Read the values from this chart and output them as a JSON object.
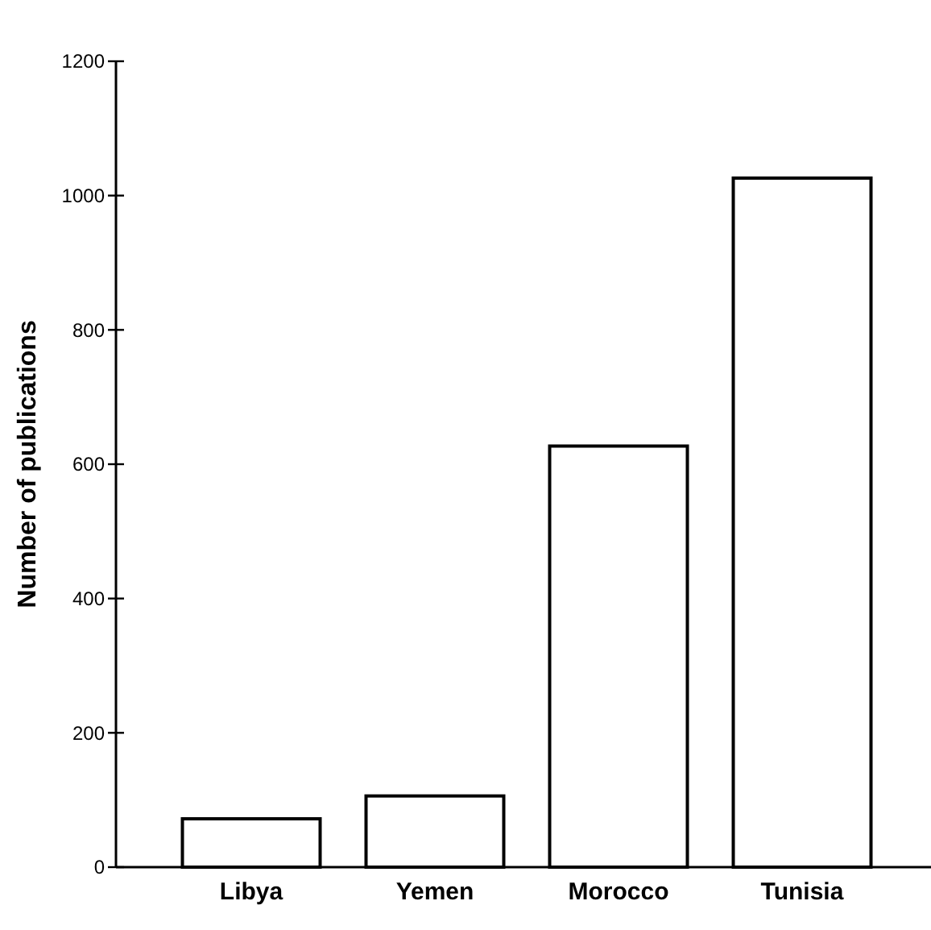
{
  "chart_data": {
    "type": "bar",
    "ylabel": "Number of publications",
    "categories": [
      "Libya",
      "Yemen",
      "Morocco",
      "Tunisia"
    ],
    "values": [
      72,
      106,
      627,
      1026
    ],
    "color": "#ffffff",
    "ylim": [
      0,
      1200
    ],
    "yticks": [
      0,
      200,
      400,
      600,
      800,
      1000,
      1200
    ],
    "grid": false
  }
}
